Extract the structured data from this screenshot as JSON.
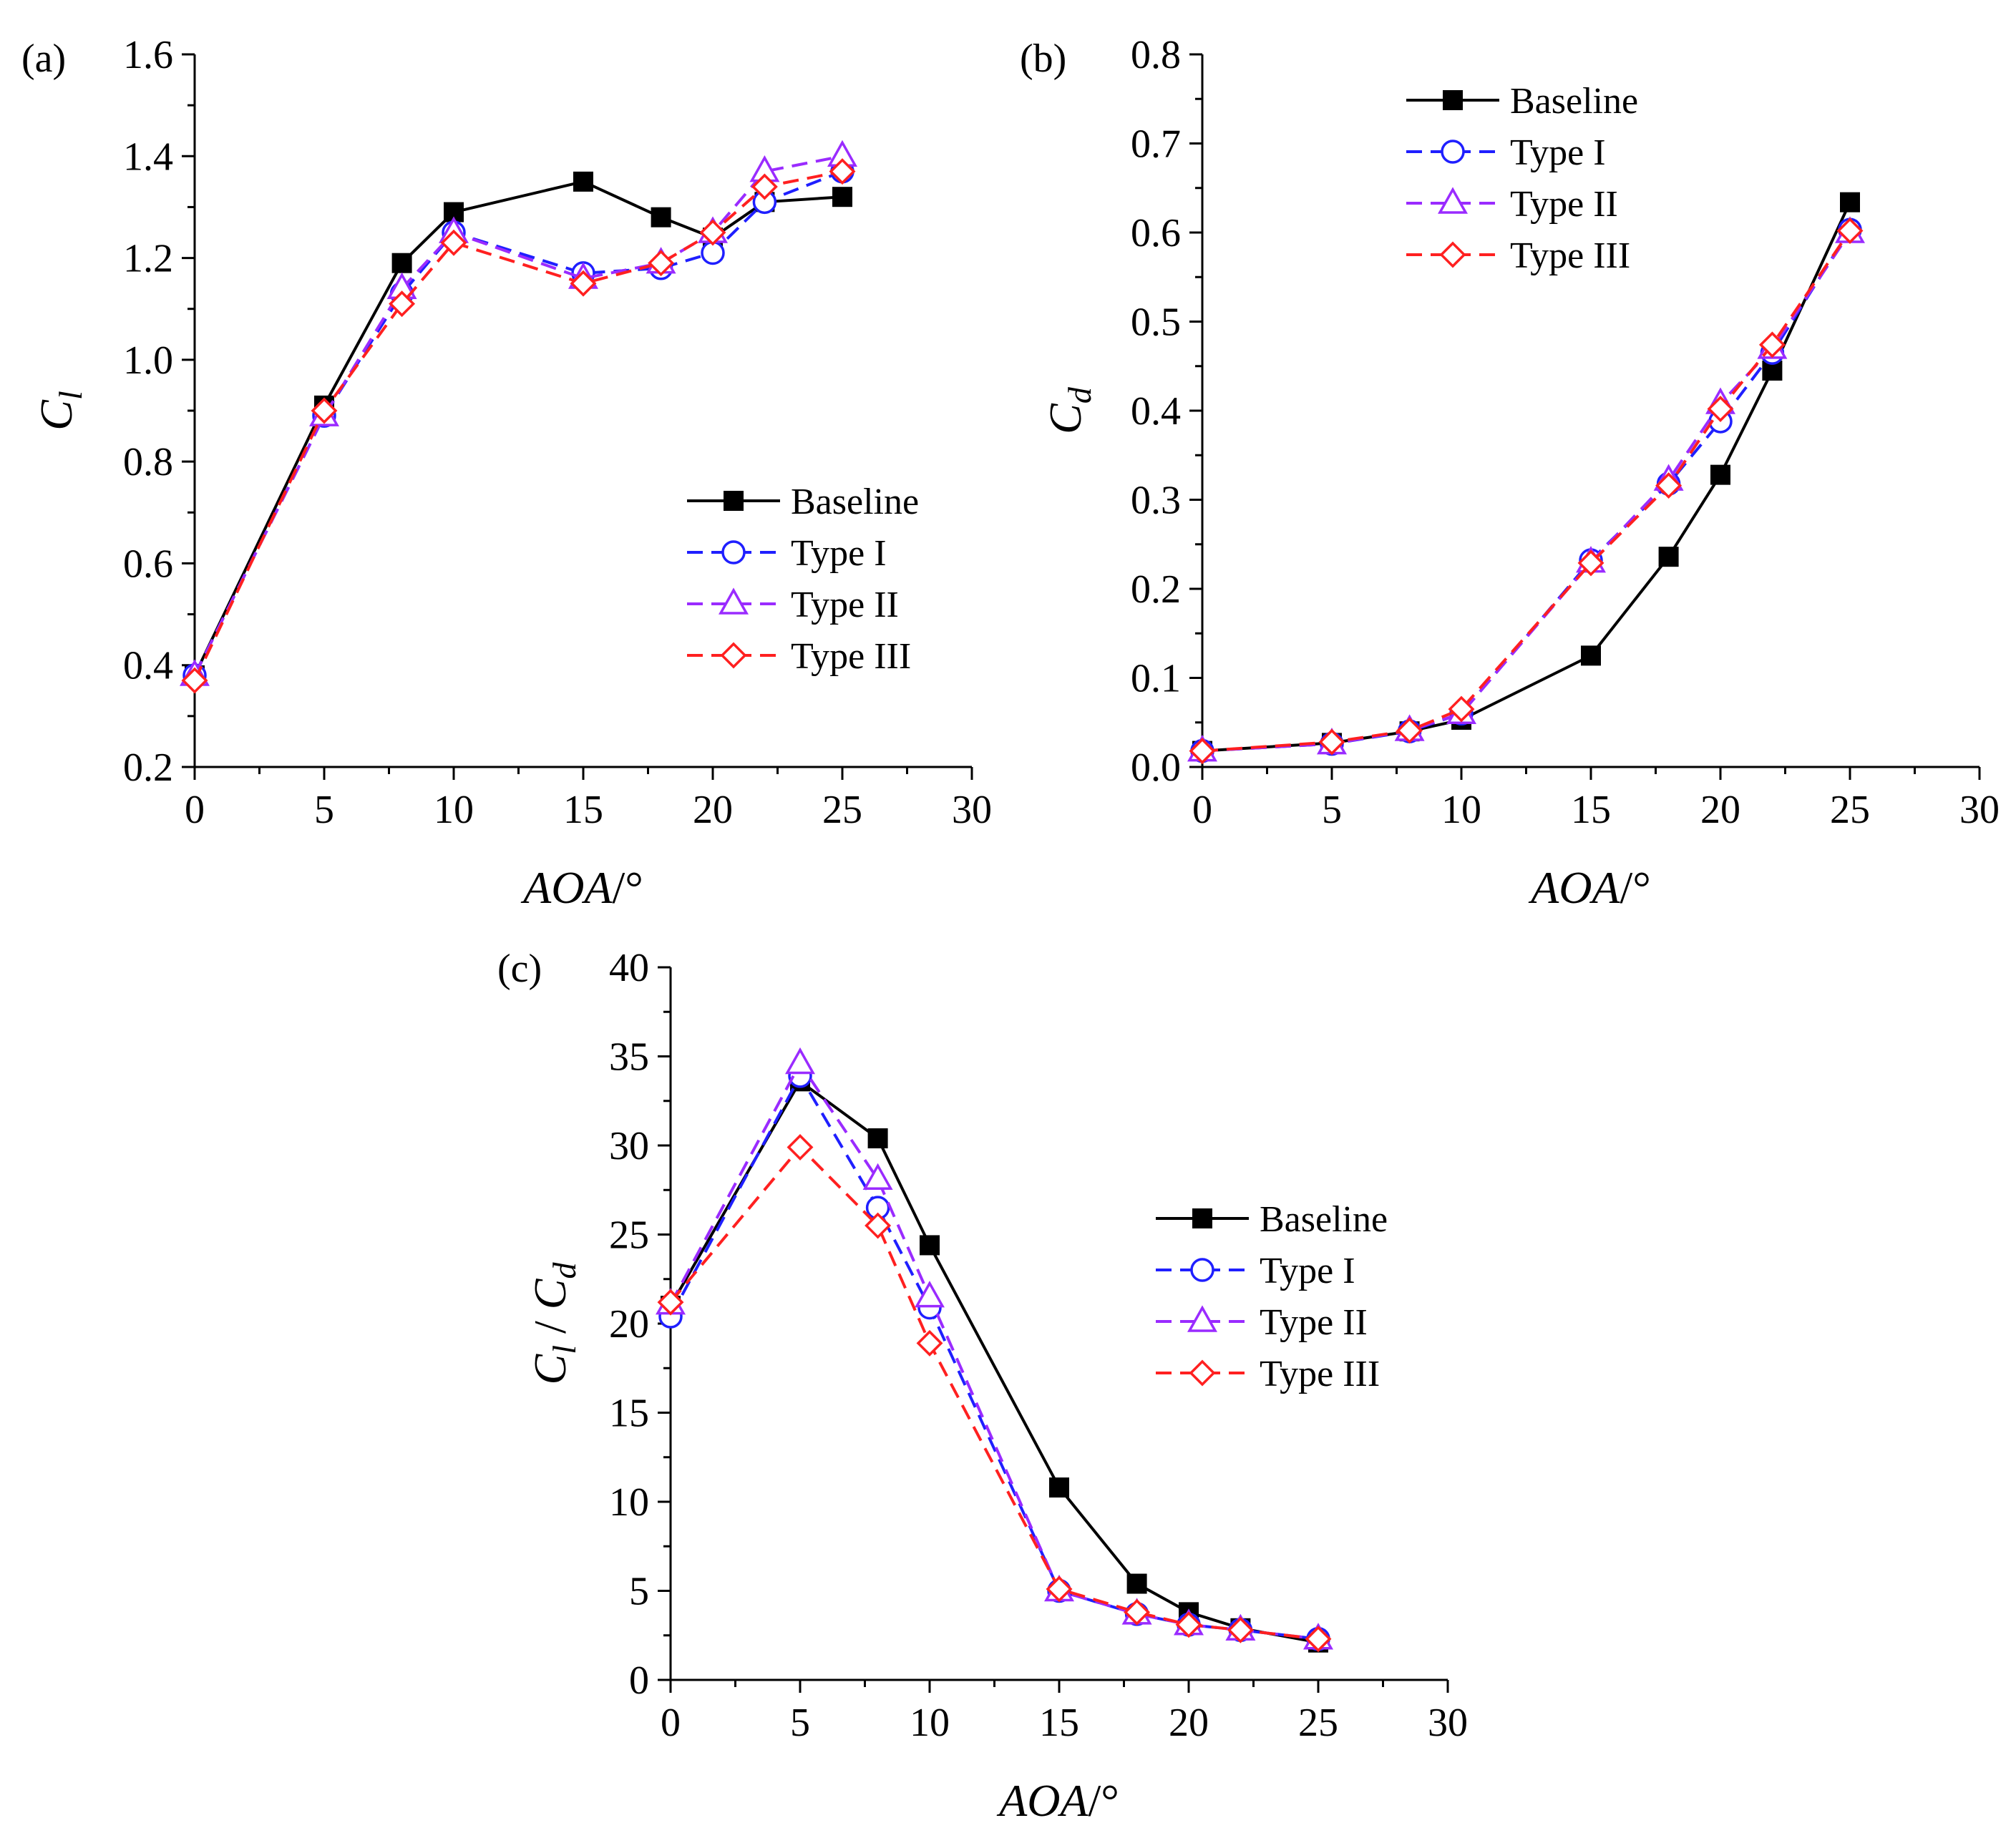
{
  "chart_data": [
    {
      "type": "line",
      "panel_label": "(a)",
      "ylabel": {
        "main": "C",
        "sub": "l"
      },
      "xlabel": {
        "italic": "AOA",
        "suffix": "/°"
      },
      "xlim": [
        0,
        30
      ],
      "ylim": [
        0.2,
        1.6
      ],
      "xticks": [
        0,
        5,
        10,
        15,
        20,
        25,
        30
      ],
      "xtick_labels": [
        "0",
        "5",
        "10",
        "15",
        "20",
        "25",
        "30"
      ],
      "yticks": [
        0.2,
        0.4,
        0.6,
        0.8,
        1.0,
        1.2,
        1.4,
        1.6
      ],
      "ytick_labels": [
        "0.2",
        "0.4",
        "0.6",
        "0.8",
        "1.0",
        "1.2",
        "1.4",
        "1.6"
      ],
      "legend_position": "center-right",
      "x": [
        0,
        5,
        8,
        10,
        15,
        18,
        20,
        22,
        25
      ],
      "series": [
        {
          "name": "Baseline",
          "color": "#000000",
          "marker": "square",
          "dash": "solid",
          "values": [
            0.38,
            0.91,
            1.19,
            1.29,
            1.35,
            1.28,
            1.24,
            1.31,
            1.32
          ]
        },
        {
          "name": "Type I",
          "color": "#1f1fff",
          "marker": "circle",
          "dash": "dashed",
          "values": [
            0.38,
            0.89,
            1.13,
            1.25,
            1.17,
            1.18,
            1.21,
            1.31,
            1.37
          ]
        },
        {
          "name": "Type II",
          "color": "#9a2bff",
          "marker": "triangle",
          "dash": "dashed",
          "values": [
            0.38,
            0.89,
            1.14,
            1.25,
            1.16,
            1.19,
            1.25,
            1.37,
            1.4
          ]
        },
        {
          "name": "Type III",
          "color": "#ff2020",
          "marker": "diamond",
          "dash": "dashed",
          "values": [
            0.37,
            0.9,
            1.11,
            1.23,
            1.15,
            1.19,
            1.25,
            1.34,
            1.37
          ]
        }
      ]
    },
    {
      "type": "line",
      "panel_label": "(b)",
      "ylabel": {
        "main": "C",
        "sub": "d"
      },
      "xlabel": {
        "italic": "AOA",
        "suffix": "/°"
      },
      "xlim": [
        0,
        30
      ],
      "ylim": [
        0.0,
        0.8
      ],
      "xticks": [
        0,
        5,
        10,
        15,
        20,
        25,
        30
      ],
      "xtick_labels": [
        "0",
        "5",
        "10",
        "15",
        "20",
        "25",
        "30"
      ],
      "yticks": [
        0.0,
        0.1,
        0.2,
        0.3,
        0.4,
        0.5,
        0.6,
        0.7,
        0.8
      ],
      "ytick_labels": [
        "0.0",
        "0.1",
        "0.2",
        "0.3",
        "0.4",
        "0.5",
        "0.6",
        "0.7",
        "0.8"
      ],
      "legend_position": "top-left",
      "x": [
        0,
        5,
        8,
        10,
        15,
        18,
        20,
        22,
        25
      ],
      "series": [
        {
          "name": "Baseline",
          "color": "#000000",
          "marker": "square",
          "dash": "solid",
          "values": [
            0.018,
            0.027,
            0.04,
            0.053,
            0.125,
            0.236,
            0.328,
            0.445,
            0.634
          ]
        },
        {
          "name": "Type I",
          "color": "#1f1fff",
          "marker": "circle",
          "dash": "dashed",
          "values": [
            0.018,
            0.026,
            0.04,
            0.06,
            0.232,
            0.318,
            0.388,
            0.465,
            0.603
          ]
        },
        {
          "name": "Type II",
          "color": "#9a2bff",
          "marker": "triangle",
          "dash": "dashed",
          "values": [
            0.018,
            0.026,
            0.041,
            0.06,
            0.23,
            0.322,
            0.408,
            0.47,
            0.6
          ]
        },
        {
          "name": "Type III",
          "color": "#ff2020",
          "marker": "diamond",
          "dash": "dashed",
          "values": [
            0.018,
            0.028,
            0.041,
            0.065,
            0.229,
            0.316,
            0.402,
            0.474,
            0.602
          ]
        }
      ]
    },
    {
      "type": "line",
      "panel_label": "(c)",
      "ylabel": {
        "main": "C",
        "sub": "l",
        "sep": " / ",
        "main2": "C",
        "sub2": "d"
      },
      "xlabel": {
        "italic": "AOA",
        "suffix": "/°"
      },
      "xlim": [
        0,
        30
      ],
      "ylim": [
        0,
        40
      ],
      "xticks": [
        0,
        5,
        10,
        15,
        20,
        25,
        30
      ],
      "xtick_labels": [
        "0",
        "5",
        "10",
        "15",
        "20",
        "25",
        "30"
      ],
      "yticks": [
        0,
        5,
        10,
        15,
        20,
        25,
        30,
        35,
        40
      ],
      "ytick_labels": [
        "0",
        "5",
        "10",
        "15",
        "20",
        "25",
        "30",
        "35",
        "40"
      ],
      "legend_position": "center-right",
      "x": [
        0,
        5,
        8,
        10,
        15,
        18,
        20,
        22,
        25
      ],
      "series": [
        {
          "name": "Baseline",
          "color": "#000000",
          "marker": "square",
          "dash": "solid",
          "values": [
            21.0,
            33.6,
            30.4,
            24.4,
            10.8,
            5.4,
            3.8,
            2.9,
            2.1
          ]
        },
        {
          "name": "Type I",
          "color": "#1f1fff",
          "marker": "circle",
          "dash": "dashed",
          "values": [
            20.4,
            33.9,
            26.5,
            20.9,
            5.0,
            3.7,
            3.1,
            2.8,
            2.3
          ]
        },
        {
          "name": "Type II",
          "color": "#9a2bff",
          "marker": "triangle",
          "dash": "dashed",
          "values": [
            21.1,
            34.6,
            28.1,
            21.5,
            5.0,
            3.7,
            3.1,
            2.8,
            2.3
          ]
        },
        {
          "name": "Type III",
          "color": "#ff2020",
          "marker": "diamond",
          "dash": "dashed",
          "values": [
            21.2,
            29.9,
            25.5,
            18.9,
            5.1,
            3.8,
            3.1,
            2.8,
            2.3
          ]
        }
      ]
    }
  ]
}
